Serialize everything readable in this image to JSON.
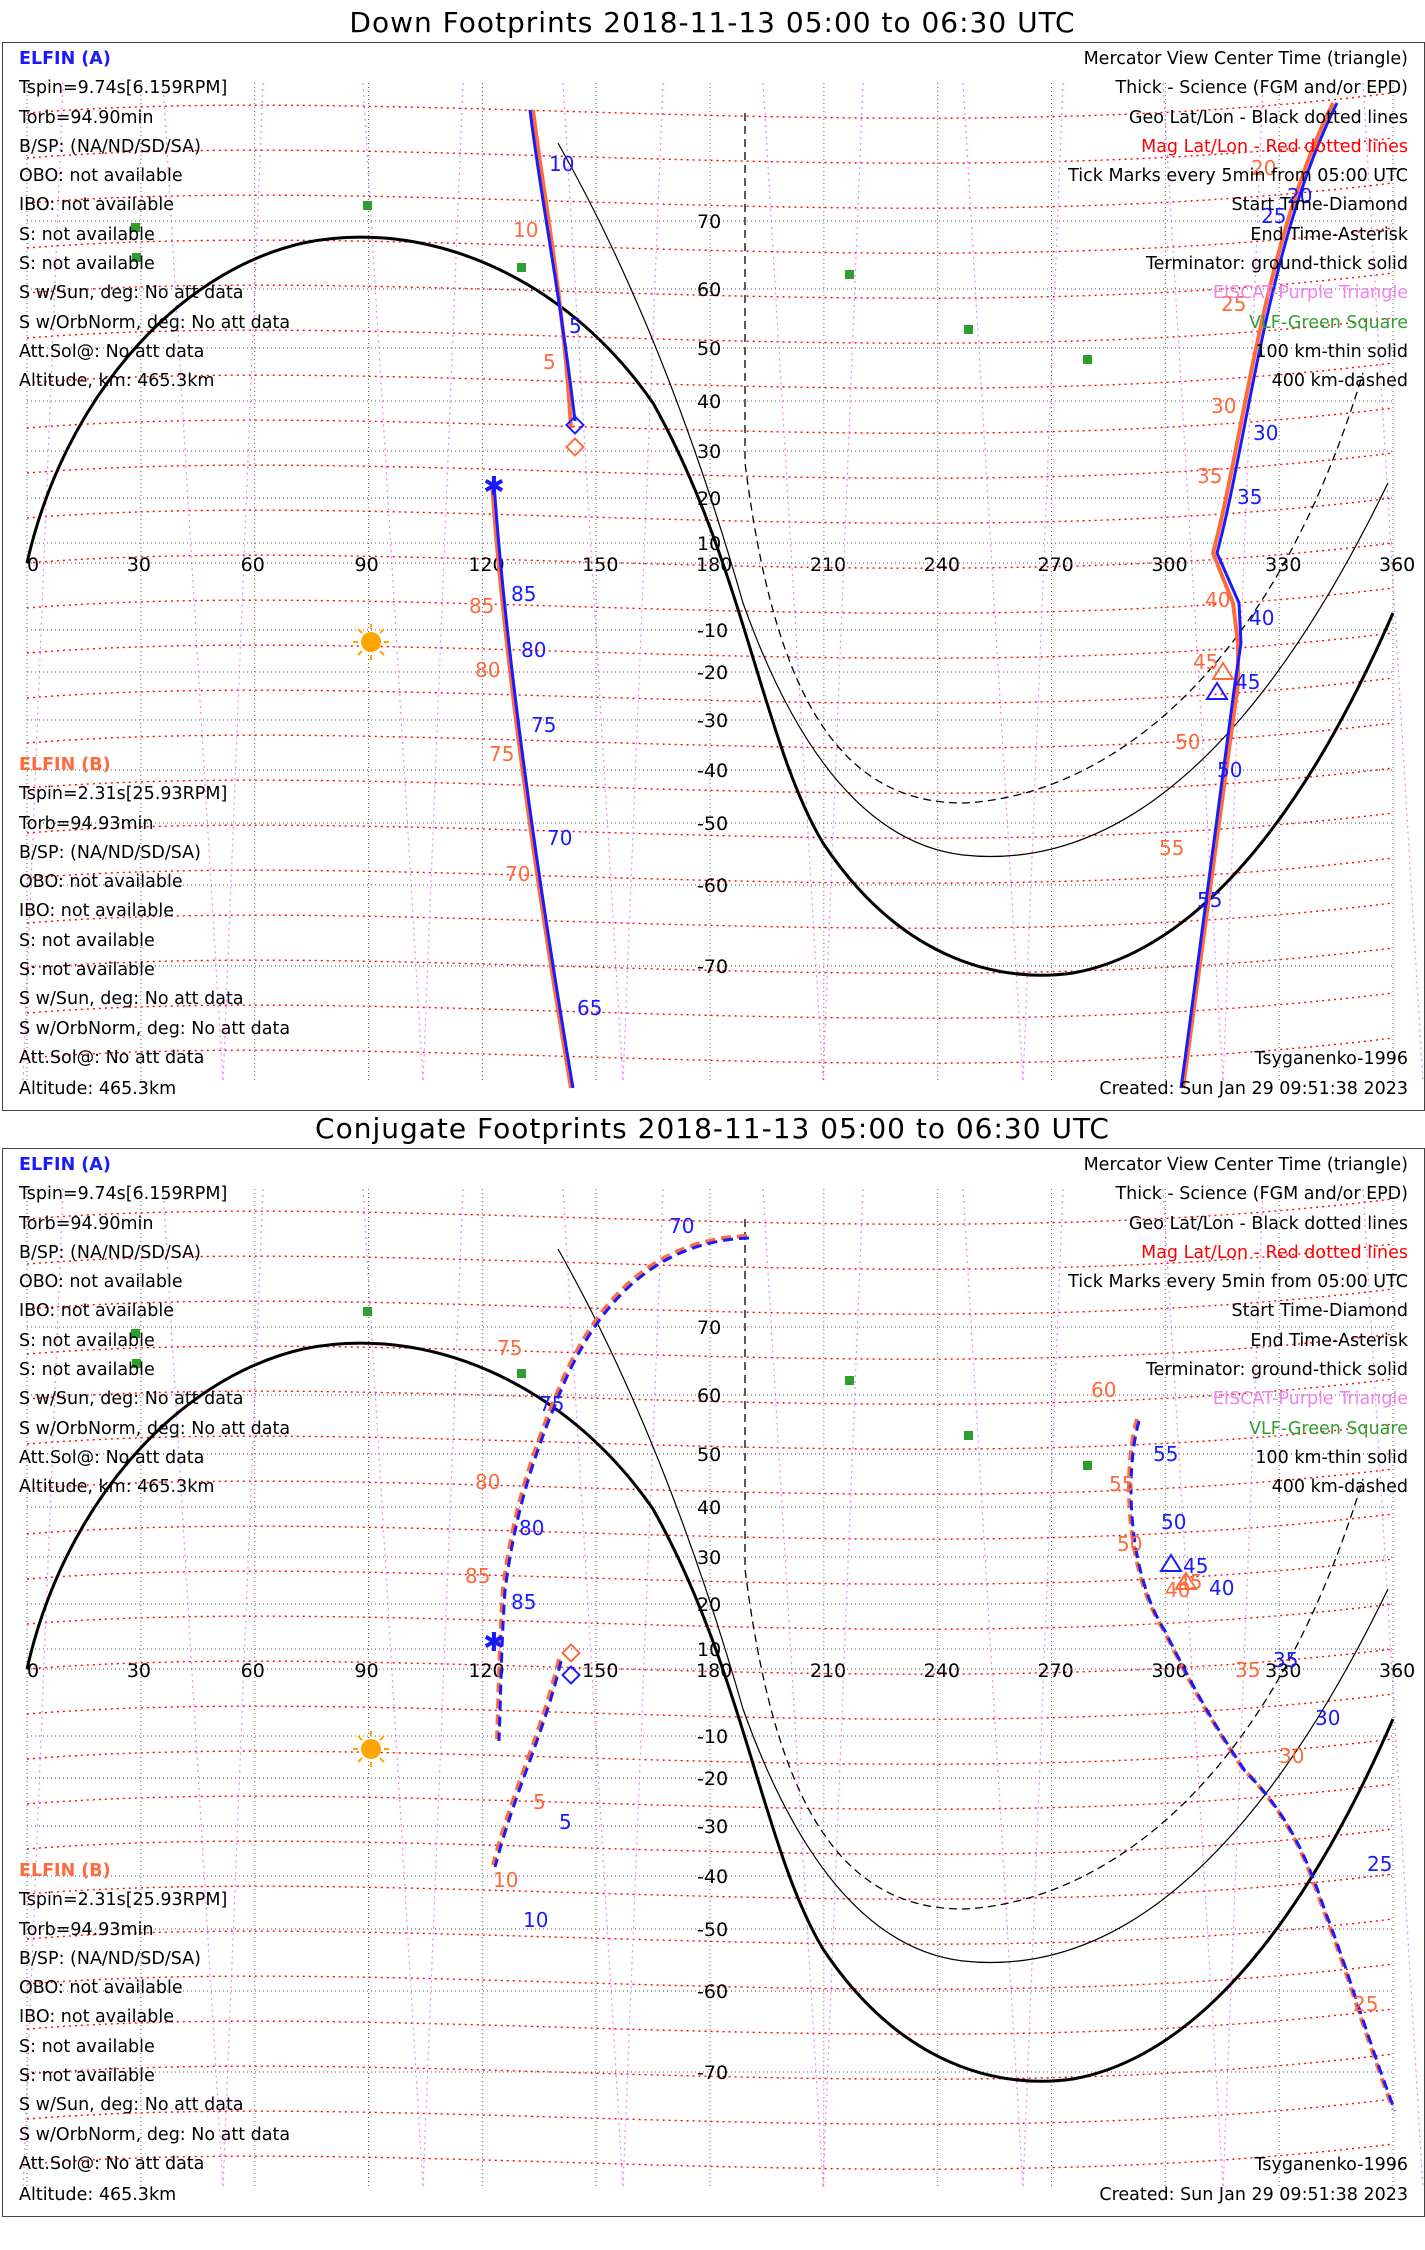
{
  "panels": [
    {
      "title": "Down Footprints 2018-11-13 05:00 to 06:30 UTC",
      "elfin_a": {
        "label": "ELFIN (A)",
        "lines": [
          "Tspin=9.74s[6.159RPM]",
          "Torb=94.90min",
          "B/SP: (NA/ND/SD/SA)",
          "OBO: not available",
          "IBO: not available",
          "S: not available",
          "S: not available",
          "S w/Sun, deg: No att data",
          "S w/OrbNorm, deg: No att data",
          "Att.Sol@: No att data",
          "Altitude, km: 465.3km"
        ]
      },
      "elfin_b": {
        "label": "ELFIN (B)",
        "lines": [
          "Tspin=2.31s[25.93RPM]",
          "Torb=94.93min",
          "B/SP: (NA/ND/SD/SA)",
          "OBO: not available",
          "IBO: not available",
          "S: not available",
          "S: not available",
          "S w/Sun, deg: No att data",
          "S w/OrbNorm, deg: No att data",
          "Att.Sol@: No att data",
          "Altitude: 465.3km"
        ]
      },
      "model": "Tsyganenko-1996",
      "created": "Created: Sun Jan 29 09:51:38 2023"
    },
    {
      "title": "Conjugate Footprints 2018-11-13 05:00 to 06:30 UTC",
      "elfin_a": {
        "label": "ELFIN (A)",
        "lines": [
          "Tspin=9.74s[6.159RPM]",
          "Torb=94.90min",
          "B/SP: (NA/ND/SD/SA)",
          "OBO: not available",
          "IBO: not available",
          "S: not available",
          "S: not available",
          "S w/Sun, deg: No att data",
          "S w/OrbNorm, deg: No att data",
          "Att.Sol@: No att data",
          "Altitude, km: 465.3km"
        ]
      },
      "elfin_b": {
        "label": "ELFIN (B)",
        "lines": [
          "Tspin=2.31s[25.93RPM]",
          "Torb=94.93min",
          "B/SP: (NA/ND/SD/SA)",
          "OBO: not available",
          "IBO: not available",
          "S: not available",
          "S: not available",
          "S w/Sun, deg: No att data",
          "S w/OrbNorm, deg: No att data",
          "Att.Sol@: No att data",
          "Altitude: 465.3km"
        ]
      },
      "model": "Tsyganenko-1996",
      "created": "Created: Sun Jan 29 09:51:38 2023"
    }
  ],
  "legend": [
    {
      "text": "Mercator View Center Time (triangle)",
      "color": "#000000"
    },
    {
      "text": "Thick - Science (FGM and/or EPD)",
      "color": "#000000"
    },
    {
      "text": "Geo Lat/Lon - Black dotted lines",
      "color": "#000000"
    },
    {
      "text": "Mag Lat/Lon - Red dotted lines",
      "color": "#ff0000"
    },
    {
      "text": "Tick Marks every 5min from 05:00 UTC",
      "color": "#000000"
    },
    {
      "text": "Start Time-Diamond",
      "color": "#000000"
    },
    {
      "text": "End Time-Asterisk",
      "color": "#000000"
    },
    {
      "text": "Terminator: ground-thick solid",
      "color": "#000000"
    },
    {
      "text": "EISCAT-Purple Triangle",
      "color": "#ee82ee"
    },
    {
      "text": "VLF-Green Square",
      "color": "#2e9e2e"
    },
    {
      "text": "100 km-thin solid",
      "color": "#000000"
    },
    {
      "text": "400 km-dashed",
      "color": "#000000"
    }
  ],
  "colors": {
    "elfin_a": "#1a1aff",
    "elfin_b": "#ff6a3d",
    "mag_grid": "#ff0000",
    "geo_grid": "#555555",
    "lon_mag": "#ee82ee",
    "sun": "#ffa500",
    "vlf": "#2e9e2e"
  },
  "map_axes": {
    "lon_ticks": [
      "0",
      "30",
      "60",
      "90",
      "120",
      "150",
      "180",
      "210",
      "240",
      "270",
      "300",
      "330",
      "360"
    ],
    "lat_ticks": [
      "70",
      "60",
      "50",
      "40",
      "30",
      "20",
      "10",
      "-10",
      "-20",
      "-30",
      "-40",
      "-50",
      "-60",
      "-70"
    ]
  },
  "track_labels": {
    "down_a": [
      "10",
      "5",
      "85",
      "80",
      "75",
      "70",
      "65",
      "20",
      "25",
      "30",
      "35",
      "40",
      "45",
      "50",
      "55"
    ],
    "down_b": [
      "10",
      "5",
      "85",
      "80",
      "75",
      "70",
      "20",
      "25",
      "30",
      "35",
      "40",
      "45",
      "50",
      "55"
    ],
    "conj_a": [
      "70",
      "75",
      "80",
      "85",
      "5",
      "10",
      "55",
      "50",
      "45",
      "40",
      "35",
      "30",
      "25"
    ],
    "conj_b": [
      "75",
      "80",
      "85",
      "5",
      "10",
      "60",
      "55",
      "50",
      "45",
      "40",
      "35",
      "30",
      "25"
    ]
  }
}
